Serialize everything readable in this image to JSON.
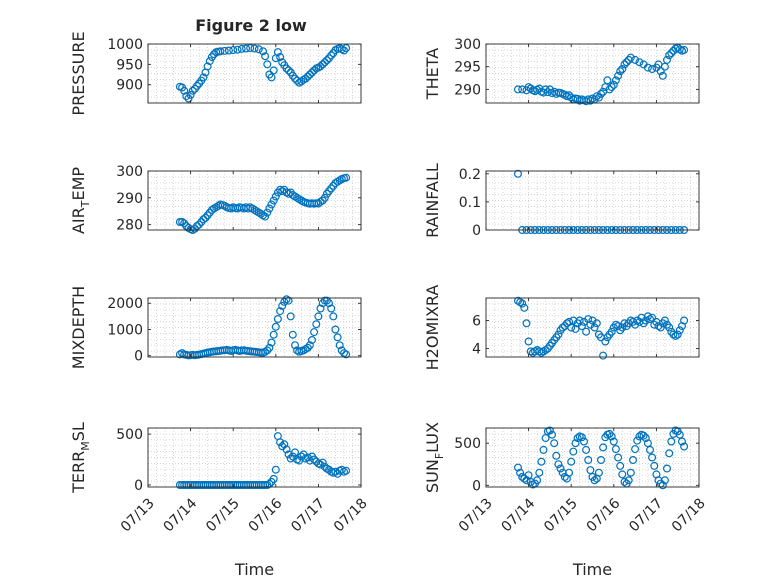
{
  "figure": {
    "title": "Figure 2 low"
  },
  "shared": {
    "xlim": [
      0,
      5
    ],
    "xticks": [
      0,
      1,
      2,
      3,
      4,
      5
    ],
    "xtick_labels": [
      "07/13",
      "07/14",
      "07/15",
      "07/16",
      "07/17",
      "07/18"
    ],
    "xlabel": "Time",
    "marker_color": "#0072BD",
    "marker": "open-circle",
    "grid": "minor-dotted"
  },
  "chart_data": [
    {
      "type": "scatter",
      "ylabel": {
        "main": "PRESSURE",
        "sub": ""
      },
      "ylim": [
        855,
        1000
      ],
      "yticks": [
        900,
        950,
        1000
      ],
      "ytick_labels": [
        "900",
        "950",
        "1000"
      ],
      "x": [
        0.75,
        0.8,
        0.85,
        0.9,
        0.95,
        1.0,
        1.05,
        1.1,
        1.15,
        1.2,
        1.25,
        1.3,
        1.35,
        1.4,
        1.45,
        1.5,
        1.55,
        1.6,
        1.65,
        1.7,
        1.8,
        1.9,
        2.0,
        2.1,
        2.2,
        2.3,
        2.4,
        2.5,
        2.6,
        2.7,
        2.75,
        2.8,
        2.85,
        2.9,
        2.95,
        3.0,
        3.05,
        3.1,
        3.15,
        3.2,
        3.25,
        3.3,
        3.35,
        3.4,
        3.45,
        3.5,
        3.55,
        3.6,
        3.65,
        3.7,
        3.75,
        3.8,
        3.85,
        3.9,
        3.95,
        4.0,
        4.05,
        4.1,
        4.15,
        4.2,
        4.25,
        4.3,
        4.35,
        4.4,
        4.45,
        4.5,
        4.55,
        4.6,
        4.65
      ],
      "y": [
        895,
        893,
        885,
        872,
        866,
        875,
        885,
        890,
        897,
        903,
        910,
        918,
        930,
        945,
        958,
        968,
        975,
        980,
        981,
        982,
        983,
        984,
        985,
        986,
        988,
        989,
        990,
        989,
        987,
        982,
        970,
        950,
        925,
        918,
        935,
        965,
        980,
        968,
        955,
        948,
        940,
        935,
        930,
        922,
        915,
        910,
        905,
        908,
        912,
        915,
        920,
        925,
        930,
        935,
        940,
        942,
        945,
        950,
        955,
        960,
        965,
        972,
        978,
        985,
        988,
        990,
        987,
        984,
        990
      ]
    },
    {
      "type": "scatter",
      "ylabel": {
        "main": "THETA",
        "sub": ""
      },
      "ylim": [
        287,
        300
      ],
      "yticks": [
        290,
        295,
        300
      ],
      "ytick_labels": [
        "290",
        "295",
        "300"
      ],
      "x": [
        0.75,
        0.85,
        0.95,
        1.0,
        1.05,
        1.1,
        1.15,
        1.2,
        1.25,
        1.3,
        1.35,
        1.4,
        1.45,
        1.5,
        1.55,
        1.6,
        1.65,
        1.7,
        1.75,
        1.8,
        1.85,
        1.9,
        1.95,
        2.0,
        2.05,
        2.1,
        2.15,
        2.2,
        2.25,
        2.3,
        2.35,
        2.4,
        2.45,
        2.5,
        2.55,
        2.6,
        2.65,
        2.7,
        2.75,
        2.8,
        2.85,
        2.9,
        2.95,
        3.0,
        3.05,
        3.1,
        3.15,
        3.2,
        3.25,
        3.3,
        3.35,
        3.4,
        3.5,
        3.6,
        3.7,
        3.8,
        3.9,
        4.0,
        4.05,
        4.1,
        4.15,
        4.2,
        4.25,
        4.3,
        4.35,
        4.4,
        4.45,
        4.5,
        4.55,
        4.6,
        4.65
      ],
      "y": [
        290.0,
        290.0,
        289.8,
        290.5,
        290.2,
        289.8,
        289.6,
        289.9,
        290.2,
        289.5,
        289.3,
        290.0,
        289.4,
        290.0,
        289.2,
        289.5,
        289.0,
        289.3,
        289.2,
        289.0,
        288.8,
        288.5,
        288.7,
        288.2,
        287.8,
        288.0,
        287.9,
        287.5,
        287.8,
        287.6,
        287.4,
        287.8,
        287.5,
        288.0,
        287.8,
        288.5,
        288.2,
        289.0,
        289.5,
        290.5,
        292.0,
        290.0,
        290.5,
        291.0,
        292.0,
        293.0,
        294.0,
        294.5,
        295.5,
        296.0,
        296.5,
        297.0,
        296.5,
        296.0,
        295.5,
        294.8,
        294.5,
        294.8,
        295.5,
        294.0,
        293.0,
        295.0,
        296.5,
        297.5,
        298.0,
        298.5,
        299.0,
        299.2,
        298.8,
        298.5,
        298.7
      ]
    },
    {
      "type": "scatter",
      "ylabel": {
        "main": "AIR",
        "sub": "T",
        "rest": "EMP"
      },
      "ylim": [
        278,
        300
      ],
      "yticks": [
        280,
        290,
        300
      ],
      "ytick_labels": [
        "280",
        "290",
        "300"
      ],
      "x": [
        0.75,
        0.8,
        0.85,
        0.9,
        0.95,
        1.0,
        1.05,
        1.1,
        1.15,
        1.2,
        1.25,
        1.3,
        1.35,
        1.4,
        1.45,
        1.5,
        1.55,
        1.6,
        1.65,
        1.7,
        1.75,
        1.8,
        1.85,
        1.9,
        1.95,
        2.0,
        2.05,
        2.1,
        2.15,
        2.2,
        2.25,
        2.3,
        2.35,
        2.4,
        2.45,
        2.5,
        2.55,
        2.6,
        2.65,
        2.7,
        2.75,
        2.8,
        2.85,
        2.9,
        2.95,
        3.0,
        3.05,
        3.1,
        3.15,
        3.2,
        3.25,
        3.3,
        3.35,
        3.4,
        3.45,
        3.5,
        3.55,
        3.6,
        3.65,
        3.7,
        3.75,
        3.8,
        3.85,
        3.9,
        3.95,
        4.0,
        4.05,
        4.1,
        4.15,
        4.2,
        4.25,
        4.3,
        4.35,
        4.4,
        4.45,
        4.5,
        4.55,
        4.6,
        4.65
      ],
      "y": [
        281.0,
        281.0,
        280.5,
        279.5,
        278.8,
        278.3,
        278.0,
        278.5,
        279.5,
        280.0,
        281.0,
        282.0,
        282.5,
        283.5,
        284.5,
        285.5,
        286.0,
        286.5,
        287.0,
        287.5,
        287.3,
        287.0,
        286.5,
        286.2,
        286.0,
        286.5,
        286.2,
        286.0,
        286.5,
        286.3,
        286.0,
        286.5,
        286.0,
        286.5,
        286.0,
        285.5,
        285.0,
        284.5,
        284.0,
        283.5,
        283.0,
        284.5,
        286.0,
        287.5,
        289.0,
        290.5,
        292.0,
        293.0,
        292.5,
        293.0,
        292.0,
        291.5,
        292.0,
        291.0,
        290.5,
        290.0,
        289.5,
        289.0,
        288.5,
        288.2,
        288.0,
        287.8,
        288.0,
        287.8,
        288.0,
        287.9,
        288.5,
        289.0,
        290.0,
        291.5,
        292.5,
        293.5,
        294.5,
        295.5,
        296.0,
        296.5,
        297.0,
        297.3,
        297.5
      ]
    },
    {
      "type": "scatter",
      "ylabel": {
        "main": "RAINFALL",
        "sub": ""
      },
      "ylim": [
        0,
        0.21
      ],
      "yticks": [
        0,
        0.1,
        0.2
      ],
      "ytick_labels": [
        "0",
        "0.1",
        "0.2"
      ],
      "x": [
        0.75,
        0.85,
        0.95,
        1.05,
        1.15,
        1.25,
        1.35,
        1.45,
        1.55,
        1.65,
        1.75,
        1.85,
        1.95,
        2.05,
        2.15,
        2.25,
        2.35,
        2.45,
        2.55,
        2.65,
        2.75,
        2.85,
        2.95,
        3.05,
        3.15,
        3.25,
        3.35,
        3.45,
        3.55,
        3.65,
        3.75,
        3.85,
        3.95,
        4.05,
        4.15,
        4.25,
        4.35,
        4.45,
        4.55,
        4.65
      ],
      "y": [
        0.2,
        0.0,
        0.0,
        0.0,
        0.0,
        0.0,
        0.0,
        0.0,
        0.0,
        0.0,
        0.0,
        0.0,
        0.0,
        0.0,
        0.0,
        0.0,
        0.0,
        0.0,
        0.0,
        0.0,
        0.0,
        0.0,
        0.0,
        0.0,
        0.0,
        0.0,
        0.0,
        0.0,
        0.0,
        0.0,
        0.0,
        0.0,
        0.0,
        0.0,
        0.0,
        0.0,
        0.0,
        0.0,
        0.0,
        0.0
      ]
    },
    {
      "type": "scatter",
      "ylabel": {
        "main": "MIXDEPTH",
        "sub": ""
      },
      "ylim": [
        -50,
        2200
      ],
      "yticks": [
        0,
        1000,
        2000
      ],
      "ytick_labels": [
        "0",
        "1000",
        "2000"
      ],
      "x": [
        0.75,
        0.8,
        0.85,
        0.9,
        0.95,
        1.0,
        1.05,
        1.1,
        1.15,
        1.2,
        1.25,
        1.3,
        1.35,
        1.4,
        1.45,
        1.5,
        1.55,
        1.6,
        1.65,
        1.7,
        1.75,
        1.8,
        1.85,
        1.9,
        1.95,
        2.0,
        2.05,
        2.1,
        2.15,
        2.2,
        2.25,
        2.3,
        2.35,
        2.4,
        2.45,
        2.5,
        2.55,
        2.6,
        2.65,
        2.7,
        2.75,
        2.8,
        2.85,
        2.9,
        2.95,
        3.0,
        3.05,
        3.1,
        3.15,
        3.2,
        3.25,
        3.3,
        3.35,
        3.4,
        3.45,
        3.5,
        3.55,
        3.6,
        3.65,
        3.7,
        3.75,
        3.8,
        3.85,
        3.9,
        3.95,
        4.0,
        4.05,
        4.1,
        4.15,
        4.2,
        4.25,
        4.3,
        4.35,
        4.4,
        4.45,
        4.5,
        4.55,
        4.6,
        4.65
      ],
      "y": [
        50,
        100,
        50,
        30,
        10,
        20,
        30,
        20,
        30,
        40,
        60,
        80,
        100,
        120,
        130,
        150,
        160,
        170,
        180,
        190,
        200,
        210,
        220,
        200,
        180,
        210,
        220,
        200,
        180,
        200,
        210,
        190,
        180,
        170,
        160,
        150,
        140,
        130,
        120,
        110,
        150,
        200,
        300,
        500,
        800,
        1100,
        1400,
        1700,
        1900,
        2050,
        2150,
        2100,
        1500,
        800,
        400,
        200,
        150,
        180,
        200,
        250,
        300,
        400,
        600,
        900,
        1200,
        1500,
        1800,
        2000,
        2100,
        2100,
        2000,
        1800,
        1500,
        1000,
        700,
        400,
        200,
        100,
        50
      ]
    },
    {
      "type": "scatter",
      "ylabel": {
        "main": "H2OMIXRA",
        "sub": ""
      },
      "ylim": [
        3.4,
        7.6
      ],
      "yticks": [
        4,
        6
      ],
      "ytick_labels": [
        "4",
        "6"
      ],
      "x": [
        0.75,
        0.8,
        0.85,
        0.9,
        0.95,
        1.0,
        1.05,
        1.1,
        1.15,
        1.2,
        1.25,
        1.3,
        1.35,
        1.4,
        1.45,
        1.5,
        1.55,
        1.6,
        1.65,
        1.7,
        1.75,
        1.8,
        1.85,
        1.9,
        1.95,
        2.0,
        2.05,
        2.1,
        2.15,
        2.2,
        2.25,
        2.3,
        2.35,
        2.4,
        2.45,
        2.5,
        2.55,
        2.6,
        2.65,
        2.7,
        2.75,
        2.8,
        2.85,
        2.9,
        2.95,
        3.0,
        3.05,
        3.1,
        3.15,
        3.2,
        3.25,
        3.3,
        3.35,
        3.4,
        3.45,
        3.5,
        3.55,
        3.6,
        3.65,
        3.7,
        3.75,
        3.8,
        3.85,
        3.9,
        3.95,
        4.0,
        4.05,
        4.1,
        4.15,
        4.2,
        4.25,
        4.3,
        4.35,
        4.4,
        4.45,
        4.5,
        4.55,
        4.6,
        4.65
      ],
      "y": [
        7.4,
        7.3,
        7.2,
        6.9,
        5.8,
        4.5,
        3.8,
        3.7,
        3.8,
        3.9,
        3.8,
        3.7,
        3.8,
        3.9,
        4.0,
        4.2,
        4.4,
        4.6,
        4.8,
        5.0,
        5.3,
        5.5,
        5.6,
        5.8,
        5.9,
        5.5,
        6.0,
        5.4,
        5.8,
        6.0,
        5.6,
        5.9,
        5.2,
        6.1,
        5.7,
        6.0,
        5.5,
        5.8,
        5.0,
        4.8,
        3.5,
        4.5,
        4.8,
        5.0,
        5.2,
        5.5,
        5.7,
        5.6,
        5.3,
        5.5,
        5.8,
        5.6,
        5.8,
        6.0,
        5.9,
        5.7,
        6.0,
        5.9,
        6.2,
        5.8,
        6.0,
        6.3,
        6.1,
        6.2,
        5.7,
        5.9,
        5.6,
        5.5,
        5.8,
        6.0,
        5.7,
        5.5,
        5.2,
        5.0,
        4.9,
        5.0,
        5.3,
        5.6,
        6.0
      ]
    },
    {
      "type": "scatter",
      "ylabel": {
        "main": "TERR",
        "sub": "M",
        "rest": "SL"
      },
      "ylim": [
        -20,
        560
      ],
      "yticks": [
        0,
        500
      ],
      "ytick_labels": [
        "0",
        "500"
      ],
      "x": [
        0.75,
        0.8,
        0.85,
        0.9,
        0.95,
        1.0,
        1.05,
        1.1,
        1.15,
        1.2,
        1.25,
        1.3,
        1.35,
        1.4,
        1.45,
        1.5,
        1.55,
        1.6,
        1.65,
        1.7,
        1.75,
        1.8,
        1.85,
        1.9,
        1.95,
        2.0,
        2.05,
        2.1,
        2.15,
        2.2,
        2.25,
        2.3,
        2.35,
        2.4,
        2.45,
        2.5,
        2.55,
        2.6,
        2.65,
        2.7,
        2.75,
        2.8,
        2.85,
        2.9,
        2.95,
        3.0,
        3.05,
        3.1,
        3.15,
        3.2,
        3.25,
        3.3,
        3.35,
        3.4,
        3.45,
        3.5,
        3.55,
        3.6,
        3.65,
        3.7,
        3.75,
        3.8,
        3.85,
        3.9,
        3.95,
        4.0,
        4.05,
        4.1,
        4.15,
        4.2,
        4.25,
        4.3,
        4.35,
        4.4,
        4.45,
        4.5,
        4.55,
        4.6,
        4.65
      ],
      "y": [
        0,
        0,
        0,
        0,
        0,
        0,
        0,
        0,
        0,
        0,
        0,
        0,
        0,
        0,
        0,
        0,
        0,
        0,
        0,
        0,
        0,
        0,
        0,
        0,
        0,
        0,
        0,
        0,
        0,
        0,
        0,
        0,
        0,
        0,
        0,
        0,
        0,
        0,
        0,
        0,
        0,
        0,
        10,
        30,
        60,
        150,
        480,
        420,
        380,
        400,
        350,
        300,
        260,
        280,
        320,
        250,
        240,
        280,
        300,
        260,
        270,
        240,
        280,
        250,
        230,
        210,
        200,
        220,
        180,
        160,
        150,
        130,
        120,
        130,
        110,
        140,
        150,
        130,
        140
      ]
    },
    {
      "type": "scatter",
      "ylabel": {
        "main": "SUN",
        "sub": "F",
        "rest": "LUX"
      },
      "ylim": [
        -20,
        680
      ],
      "yticks": [
        0,
        500
      ],
      "ytick_labels": [
        "0",
        "500"
      ],
      "x": [
        0.75,
        0.8,
        0.85,
        0.9,
        0.95,
        1.0,
        1.05,
        1.1,
        1.15,
        1.2,
        1.25,
        1.3,
        1.35,
        1.4,
        1.45,
        1.5,
        1.55,
        1.6,
        1.65,
        1.7,
        1.75,
        1.8,
        1.85,
        1.9,
        1.95,
        2.0,
        2.05,
        2.1,
        2.15,
        2.2,
        2.25,
        2.3,
        2.35,
        2.4,
        2.45,
        2.5,
        2.55,
        2.6,
        2.65,
        2.7,
        2.75,
        2.8,
        2.85,
        2.9,
        2.95,
        3.0,
        3.05,
        3.1,
        3.15,
        3.2,
        3.25,
        3.3,
        3.35,
        3.4,
        3.45,
        3.5,
        3.55,
        3.6,
        3.65,
        3.7,
        3.75,
        3.8,
        3.85,
        3.9,
        3.95,
        4.0,
        4.05,
        4.1,
        4.15,
        4.2,
        4.25,
        4.3,
        4.35,
        4.4,
        4.45,
        4.5,
        4.55,
        4.6,
        4.65
      ],
      "y": [
        210,
        150,
        100,
        80,
        60,
        120,
        40,
        10,
        20,
        60,
        150,
        280,
        420,
        560,
        640,
        650,
        600,
        500,
        350,
        250,
        200,
        150,
        100,
        80,
        150,
        280,
        400,
        500,
        560,
        580,
        570,
        520,
        420,
        300,
        180,
        100,
        60,
        80,
        150,
        300,
        450,
        570,
        600,
        610,
        580,
        520,
        430,
        330,
        230,
        130,
        40,
        20,
        60,
        150,
        300,
        430,
        530,
        580,
        600,
        590,
        560,
        500,
        420,
        330,
        230,
        130,
        60,
        20,
        0,
        60,
        200,
        380,
        520,
        610,
        650,
        640,
        600,
        520,
        460
      ]
    }
  ]
}
